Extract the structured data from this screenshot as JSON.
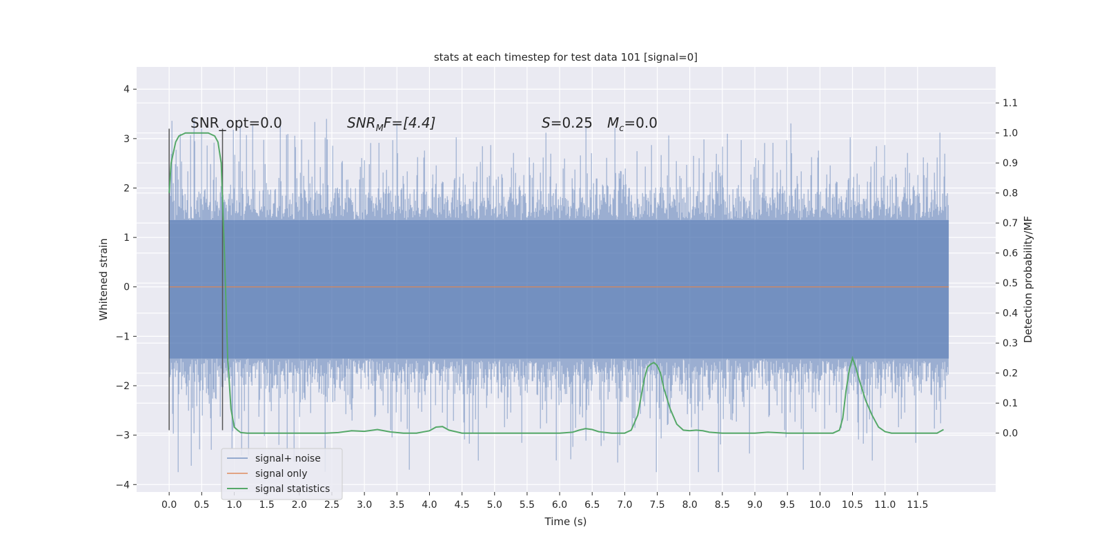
{
  "chart_data": {
    "type": "line",
    "title": "stats at each timestep for test data 101 [signal=0]",
    "xlabel": "Time (s)",
    "ylabel": "Whitened strain",
    "y2label": "Detection probability/MF",
    "xlim": [
      -0.5,
      12.7
    ],
    "ylim": [
      -4.15,
      4.45
    ],
    "y2lim": [
      -0.196,
      1.22
    ],
    "xticks": [
      0.0,
      0.5,
      1.0,
      1.5,
      2.0,
      2.5,
      3.0,
      3.5,
      4.0,
      4.5,
      5.0,
      5.5,
      6.0,
      6.5,
      7.0,
      7.5,
      8.0,
      8.5,
      9.0,
      9.5,
      10.0,
      10.5,
      11.0,
      11.5
    ],
    "xtick_labels": [
      "0.0",
      "0.5",
      "1.0",
      "1.5",
      "2.0",
      "2.5",
      "3.0",
      "3.5",
      "4.0",
      "4.5",
      "5.0",
      "5.5",
      "6.0",
      "6.5",
      "7.0",
      "7.5",
      "8.0",
      "8.5",
      "9.0",
      "9.5",
      "10.0",
      "10.5",
      "11.0",
      "11.5"
    ],
    "yticks": [
      -4,
      -3,
      -2,
      -1,
      0,
      1,
      2,
      3,
      4
    ],
    "ytick_labels": [
      "−4",
      "−3",
      "−2",
      "−1",
      "0",
      "1",
      "2",
      "3",
      "4"
    ],
    "y2ticks": [
      0.0,
      0.1,
      0.2,
      0.3,
      0.4,
      0.5,
      0.6,
      0.7,
      0.8,
      0.9,
      1.0,
      1.1
    ],
    "y2tick_labels": [
      "0.0",
      "0.1",
      "0.2",
      "0.3",
      "0.4",
      "0.5",
      "0.6",
      "0.7",
      "0.8",
      "0.9",
      "1.0",
      "1.1"
    ],
    "grid": true,
    "legend_position": "lower-left",
    "annotations": {
      "snr_opt": "SNR_opt=0.0",
      "snr_mf_main": "SNR",
      "snr_mf_sub": "M",
      "snr_mf_rest": "F=[4.4]",
      "s_main": "S",
      "s_rest": "=0.25",
      "mc_main": "M",
      "mc_sub": "c",
      "mc_rest": "=0.0"
    },
    "series": [
      {
        "name": "signal+ noise",
        "color": "#4c72b0",
        "opacity": 0.5,
        "kind": "dense-noise",
        "x_range": [
          0.0,
          11.98
        ],
        "typical_extent": [
          -1.5,
          1.4
        ]
      },
      {
        "name": "signal only",
        "color": "#dd8452",
        "x": [
          0.0,
          11.98
        ],
        "y": [
          0.0,
          0.0
        ]
      },
      {
        "name": "signal statistics",
        "color": "#55a868",
        "axis": "right",
        "x": [
          0.0,
          0.03,
          0.1,
          0.15,
          0.25,
          0.35,
          0.5,
          0.6,
          0.7,
          0.75,
          0.8,
          0.85,
          0.9,
          0.95,
          1.0,
          1.05,
          1.1,
          1.2,
          1.4,
          1.6,
          1.8,
          2.0,
          2.2,
          2.4,
          2.6,
          2.8,
          3.0,
          3.2,
          3.4,
          3.6,
          3.8,
          4.0,
          4.1,
          4.2,
          4.3,
          4.5,
          5.0,
          5.5,
          6.0,
          6.2,
          6.3,
          6.4,
          6.5,
          6.6,
          6.8,
          7.0,
          7.1,
          7.2,
          7.25,
          7.3,
          7.35,
          7.4,
          7.45,
          7.5,
          7.55,
          7.6,
          7.7,
          7.8,
          7.9,
          8.0,
          8.1,
          8.2,
          8.3,
          8.5,
          9.0,
          9.2,
          9.5,
          10.0,
          10.2,
          10.3,
          10.35,
          10.4,
          10.45,
          10.5,
          10.55,
          10.6,
          10.7,
          10.8,
          10.9,
          11.0,
          11.1,
          11.2,
          11.5,
          11.8,
          11.9
        ],
        "y": [
          0.8,
          0.9,
          0.97,
          0.99,
          1.0,
          1.0,
          1.0,
          1.0,
          0.99,
          0.97,
          0.9,
          0.6,
          0.25,
          0.08,
          0.02,
          0.01,
          0.002,
          0.0,
          0.0,
          0.0,
          0.0,
          0.0,
          0.0,
          0.0,
          0.002,
          0.008,
          0.006,
          0.012,
          0.004,
          0.0,
          0.0,
          0.008,
          0.02,
          0.022,
          0.01,
          0.0,
          0.0,
          0.0,
          0.0,
          0.003,
          0.01,
          0.015,
          0.012,
          0.005,
          0.0,
          0.0,
          0.01,
          0.06,
          0.12,
          0.18,
          0.22,
          0.23,
          0.235,
          0.225,
          0.2,
          0.15,
          0.08,
          0.03,
          0.01,
          0.008,
          0.01,
          0.008,
          0.003,
          0.0,
          0.0,
          0.003,
          0.0,
          0.0,
          0.0,
          0.01,
          0.05,
          0.14,
          0.21,
          0.25,
          0.22,
          0.18,
          0.11,
          0.06,
          0.02,
          0.005,
          0.0,
          0.0,
          0.0,
          0.0,
          0.012
        ]
      }
    ],
    "vertical_markers": [
      {
        "x": 0.0,
        "y_from": -2.9,
        "y_to": 3.2,
        "color": "#555555"
      },
      {
        "x": 0.82,
        "y_from": -2.9,
        "y_to": 3.2,
        "color": "#555555"
      }
    ]
  }
}
